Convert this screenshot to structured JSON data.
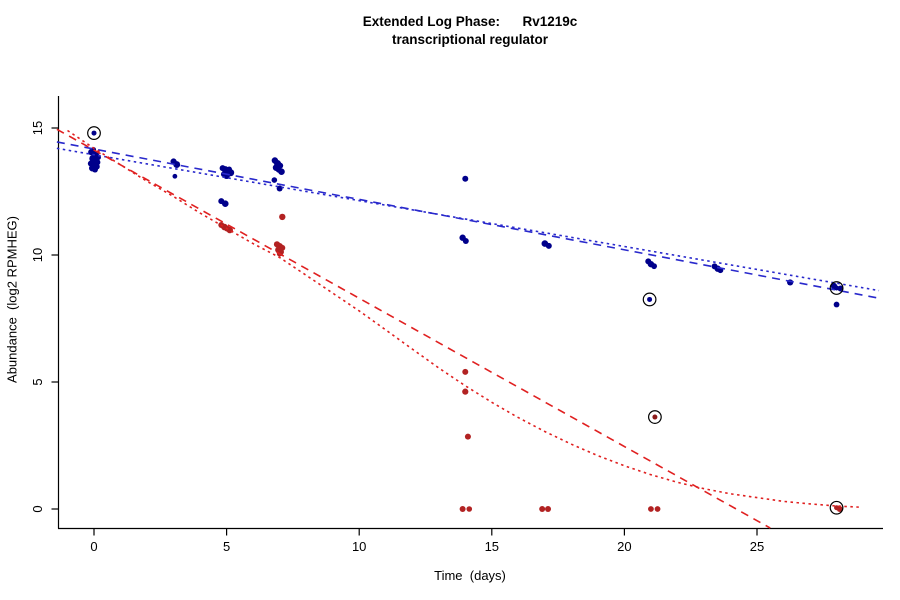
{
  "title": {
    "line1": "Extended Log Phase:      Rv1219c",
    "line2": "transcriptional regulator"
  },
  "chart_data": {
    "type": "scatter",
    "title": "Extended Log Phase: Rv1219c transcriptional regulator",
    "xlabel": "Time  (days)",
    "ylabel": "Abundance  (log2 RPMHEG)",
    "xlim": [
      -1.5,
      29.7
    ],
    "ylim": [
      -0.8,
      17.6
    ],
    "x_ticks": [
      0,
      5,
      10,
      15,
      20,
      25
    ],
    "y_ticks": [
      0,
      5,
      10,
      15
    ],
    "grid": false,
    "legend": "none",
    "colors": {
      "blue_points": "#00008B",
      "red_points": "#B22222",
      "blue_line": "#2929CC",
      "red_line": "#E02020",
      "circle_outline": "#000000",
      "axis": "#000000"
    },
    "series": [
      {
        "name": "blue",
        "color": "#00008B",
        "marker": "filled-circle",
        "points": [
          [
            -0.1,
            14.05,
            3.2
          ],
          [
            0.05,
            13.95,
            3.6
          ],
          [
            0.15,
            13.85,
            3.0
          ],
          [
            -0.05,
            13.8,
            3.4
          ],
          [
            0.0,
            13.72,
            3.8
          ],
          [
            0.12,
            13.65,
            3.2
          ],
          [
            -0.12,
            13.6,
            3.0
          ],
          [
            0.02,
            13.55,
            3.5
          ],
          [
            0.1,
            13.48,
            3.1
          ],
          [
            -0.06,
            13.42,
            3.4
          ],
          [
            0.04,
            13.36,
            2.9
          ],
          [
            -0.02,
            14.15,
            2.6
          ],
          [
            3.0,
            13.68,
            3.1
          ],
          [
            3.12,
            13.56,
            3.4
          ],
          [
            3.05,
            13.1,
            2.4
          ],
          [
            4.85,
            13.42,
            3.0
          ],
          [
            4.95,
            13.36,
            3.5
          ],
          [
            5.05,
            13.3,
            3.2
          ],
          [
            5.15,
            13.24,
            3.6
          ],
          [
            4.9,
            13.18,
            3.0
          ],
          [
            5.0,
            13.12,
            3.3
          ],
          [
            5.1,
            13.38,
            2.7
          ],
          [
            4.8,
            12.12,
            3.0
          ],
          [
            4.95,
            12.02,
            3.3
          ],
          [
            6.82,
            13.72,
            3.2
          ],
          [
            6.92,
            13.6,
            3.5
          ],
          [
            7.02,
            13.52,
            3.0
          ],
          [
            6.87,
            13.44,
            3.4
          ],
          [
            6.97,
            13.36,
            3.1
          ],
          [
            7.07,
            13.28,
            3.3
          ],
          [
            6.8,
            12.95,
            2.8
          ],
          [
            7.0,
            12.62,
            3.0
          ],
          [
            14.0,
            13.0,
            3.0
          ],
          [
            13.9,
            10.68,
            3.2
          ],
          [
            14.02,
            10.55,
            3.0
          ],
          [
            17.0,
            10.45,
            3.3
          ],
          [
            17.15,
            10.36,
            3.0
          ],
          [
            20.9,
            9.75,
            3.0
          ],
          [
            21.0,
            9.64,
            3.2
          ],
          [
            21.12,
            9.56,
            2.9
          ],
          [
            23.4,
            9.55,
            3.0
          ],
          [
            23.52,
            9.46,
            3.2
          ],
          [
            23.62,
            9.4,
            2.9
          ],
          [
            26.25,
            8.92,
            3.1
          ],
          [
            27.9,
            8.78,
            3.2
          ],
          [
            28.15,
            8.68,
            3.0
          ],
          [
            28.0,
            8.05,
            2.9
          ]
        ]
      },
      {
        "name": "red",
        "color": "#B22222",
        "marker": "filled-circle",
        "points": [
          [
            4.8,
            11.18,
            3.0
          ],
          [
            4.92,
            11.1,
            3.3
          ],
          [
            5.02,
            11.04,
            3.0
          ],
          [
            5.12,
            10.98,
            3.2
          ],
          [
            7.1,
            11.5,
            3.2
          ],
          [
            6.9,
            10.42,
            3.1
          ],
          [
            7.0,
            10.34,
            3.4
          ],
          [
            7.1,
            10.28,
            3.0
          ],
          [
            6.95,
            10.2,
            3.2
          ],
          [
            7.05,
            10.12,
            3.0
          ],
          [
            7.0,
            10.05,
            2.8
          ],
          [
            14.0,
            5.4,
            3.0
          ],
          [
            14.0,
            4.62,
            3.1
          ],
          [
            14.1,
            2.85,
            3.0
          ],
          [
            13.9,
            0.0,
            3.0
          ],
          [
            14.15,
            0.0,
            2.8
          ],
          [
            16.9,
            0.0,
            3.0
          ],
          [
            17.12,
            0.0,
            3.0
          ],
          [
            21.0,
            0.0,
            2.9
          ],
          [
            21.25,
            0.0,
            2.9
          ],
          [
            28.12,
            0.0,
            3.0
          ]
        ]
      }
    ],
    "fit_lines": [
      {
        "name": "blue-dashed-fit",
        "color": "#2929CC",
        "style": "dashed",
        "from": [
          -1.4,
          14.45
        ],
        "to": [
          29.6,
          8.3
        ]
      },
      {
        "name": "blue-dotted-fit",
        "color": "#2929CC",
        "style": "dotted",
        "from": [
          -1.4,
          14.2
        ],
        "to": [
          29.6,
          8.6
        ]
      },
      {
        "name": "red-dashed-fit",
        "color": "#E02020",
        "style": "dashed",
        "from": [
          -1.4,
          14.95
        ],
        "to": [
          25.5,
          -0.75
        ]
      },
      {
        "name": "red-dotted-fit",
        "color": "#E02020",
        "style": "dotted",
        "curve": [
          [
            -1.0,
            14.9
          ],
          [
            0,
            14.2
          ],
          [
            1,
            13.55
          ],
          [
            2,
            12.9
          ],
          [
            3,
            12.3
          ],
          [
            4,
            11.65
          ],
          [
            5,
            11.05
          ],
          [
            6,
            10.45
          ],
          [
            7,
            9.9
          ],
          [
            8,
            9.2
          ],
          [
            9,
            8.5
          ],
          [
            10,
            7.8
          ],
          [
            11,
            7.05
          ],
          [
            12,
            6.3
          ],
          [
            13,
            5.55
          ],
          [
            14,
            4.85
          ],
          [
            15,
            4.2
          ],
          [
            16,
            3.6
          ],
          [
            17,
            3.05
          ],
          [
            18,
            2.55
          ],
          [
            19,
            2.1
          ],
          [
            20,
            1.7
          ],
          [
            21,
            1.35
          ],
          [
            22,
            1.05
          ],
          [
            23,
            0.8
          ],
          [
            24,
            0.6
          ],
          [
            25,
            0.45
          ],
          [
            26,
            0.3
          ],
          [
            27,
            0.2
          ],
          [
            28,
            0.12
          ],
          [
            28.9,
            0.07
          ]
        ]
      }
    ],
    "circled_points": [
      {
        "x": 0.0,
        "y": 14.8,
        "dot_color": "#00008B"
      },
      {
        "x": 20.95,
        "y": 8.25,
        "dot_color": "#00008B"
      },
      {
        "x": 21.15,
        "y": 3.62,
        "dot_color": "#8B1A1A"
      },
      {
        "x": 28.0,
        "y": 8.7,
        "dot_color": "#00008B"
      },
      {
        "x": 28.0,
        "y": 0.05,
        "dot_color": "#B22222"
      }
    ]
  }
}
